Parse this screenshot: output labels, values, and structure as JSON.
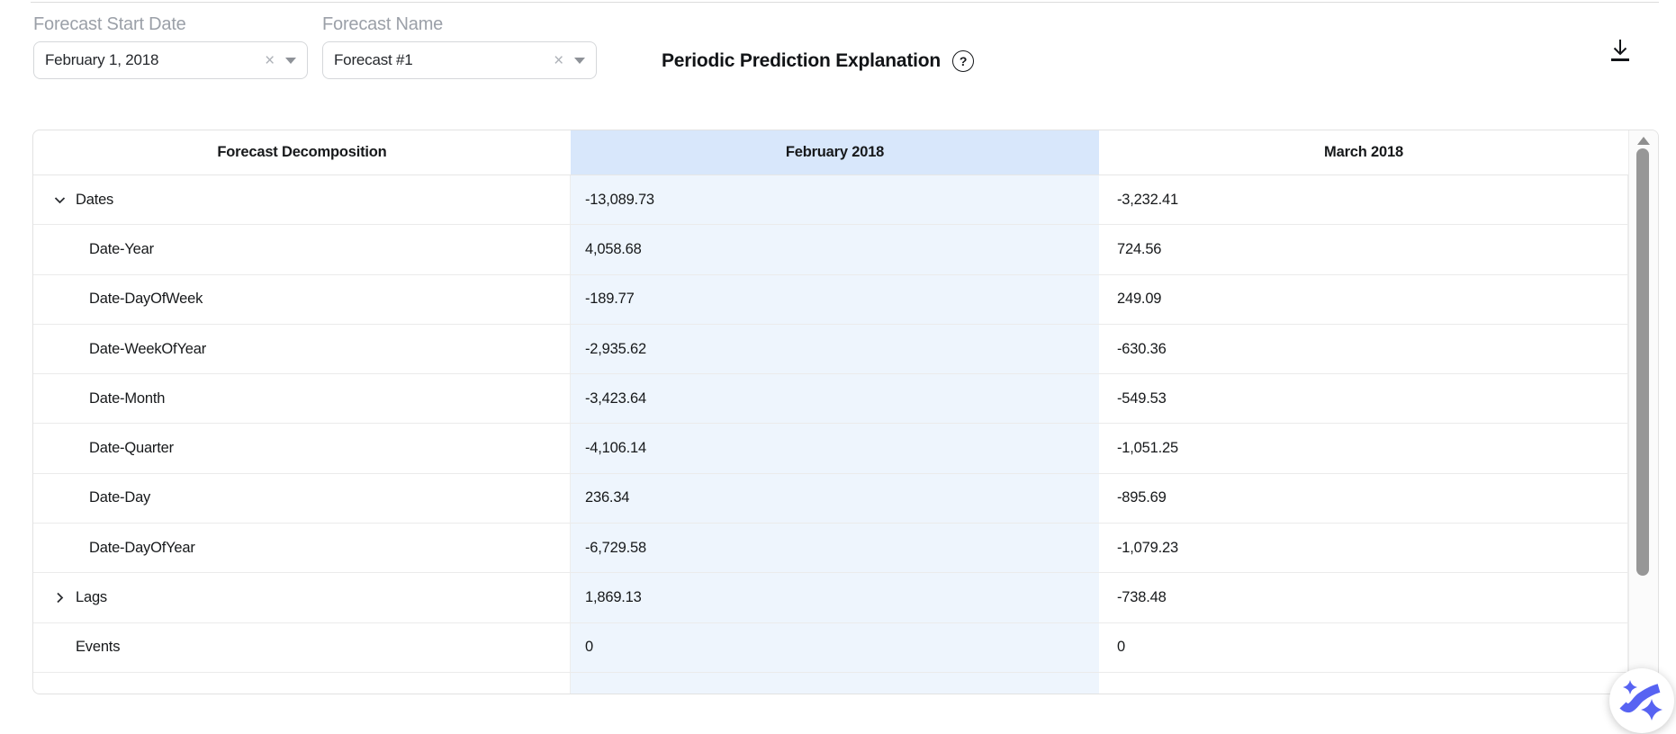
{
  "filters": {
    "start_date": {
      "label": "Forecast Start Date",
      "value": "February 1, 2018",
      "clear_icon": "x-clear-icon",
      "caret_icon": "chevron-down-caret"
    },
    "forecast_name": {
      "label": "Forecast Name",
      "value": "Forecast #1",
      "clear_icon": "x-clear-icon",
      "caret_icon": "chevron-down-caret"
    }
  },
  "header": {
    "title": "Periodic Prediction Explanation",
    "help_icon": "question-mark-circle",
    "download_icon": "download-arrow"
  },
  "table": {
    "columns": [
      "Forecast Decomposition",
      "February 2018",
      "March 2018"
    ],
    "rows": [
      {
        "label": "Dates",
        "level": 0,
        "expand_state": "expanded",
        "feb": "-13,089.73",
        "mar": "-3,232.41"
      },
      {
        "label": "Date-Year",
        "level": 1,
        "expand_state": "none",
        "feb": "4,058.68",
        "mar": "724.56"
      },
      {
        "label": "Date-DayOfWeek",
        "level": 1,
        "expand_state": "none",
        "feb": "-189.77",
        "mar": "249.09"
      },
      {
        "label": "Date-WeekOfYear",
        "level": 1,
        "expand_state": "none",
        "feb": "-2,935.62",
        "mar": "-630.36"
      },
      {
        "label": "Date-Month",
        "level": 1,
        "expand_state": "none",
        "feb": "-3,423.64",
        "mar": "-549.53"
      },
      {
        "label": "Date-Quarter",
        "level": 1,
        "expand_state": "none",
        "feb": "-4,106.14",
        "mar": "-1,051.25"
      },
      {
        "label": "Date-Day",
        "level": 1,
        "expand_state": "none",
        "feb": "236.34",
        "mar": "-895.69"
      },
      {
        "label": "Date-DayOfYear",
        "level": 1,
        "expand_state": "none",
        "feb": "-6,729.58",
        "mar": "-1,079.23"
      },
      {
        "label": "Lags",
        "level": 0,
        "expand_state": "collapsed",
        "feb": "1,869.13",
        "mar": "-738.48"
      },
      {
        "label": "Events",
        "level": 0,
        "expand_state": "none",
        "feb": "0",
        "mar": "0"
      },
      {
        "label": "",
        "level": 0,
        "expand_state": "none",
        "feb": "",
        "mar": ""
      }
    ]
  },
  "scrollbar": {
    "up_icon": "scroll-up-arrow",
    "thumb": "scroll-thumb"
  },
  "logo": {
    "icon": "brand-sparkle-swoosh"
  },
  "colors": {
    "accent_column_header": "#d8e7fb",
    "accent_column_body": "#eef5fd",
    "brand_blue": "#5763f2",
    "text": "#17191c",
    "muted_label": "#9ba0a8",
    "border": "#e2e2e2"
  }
}
